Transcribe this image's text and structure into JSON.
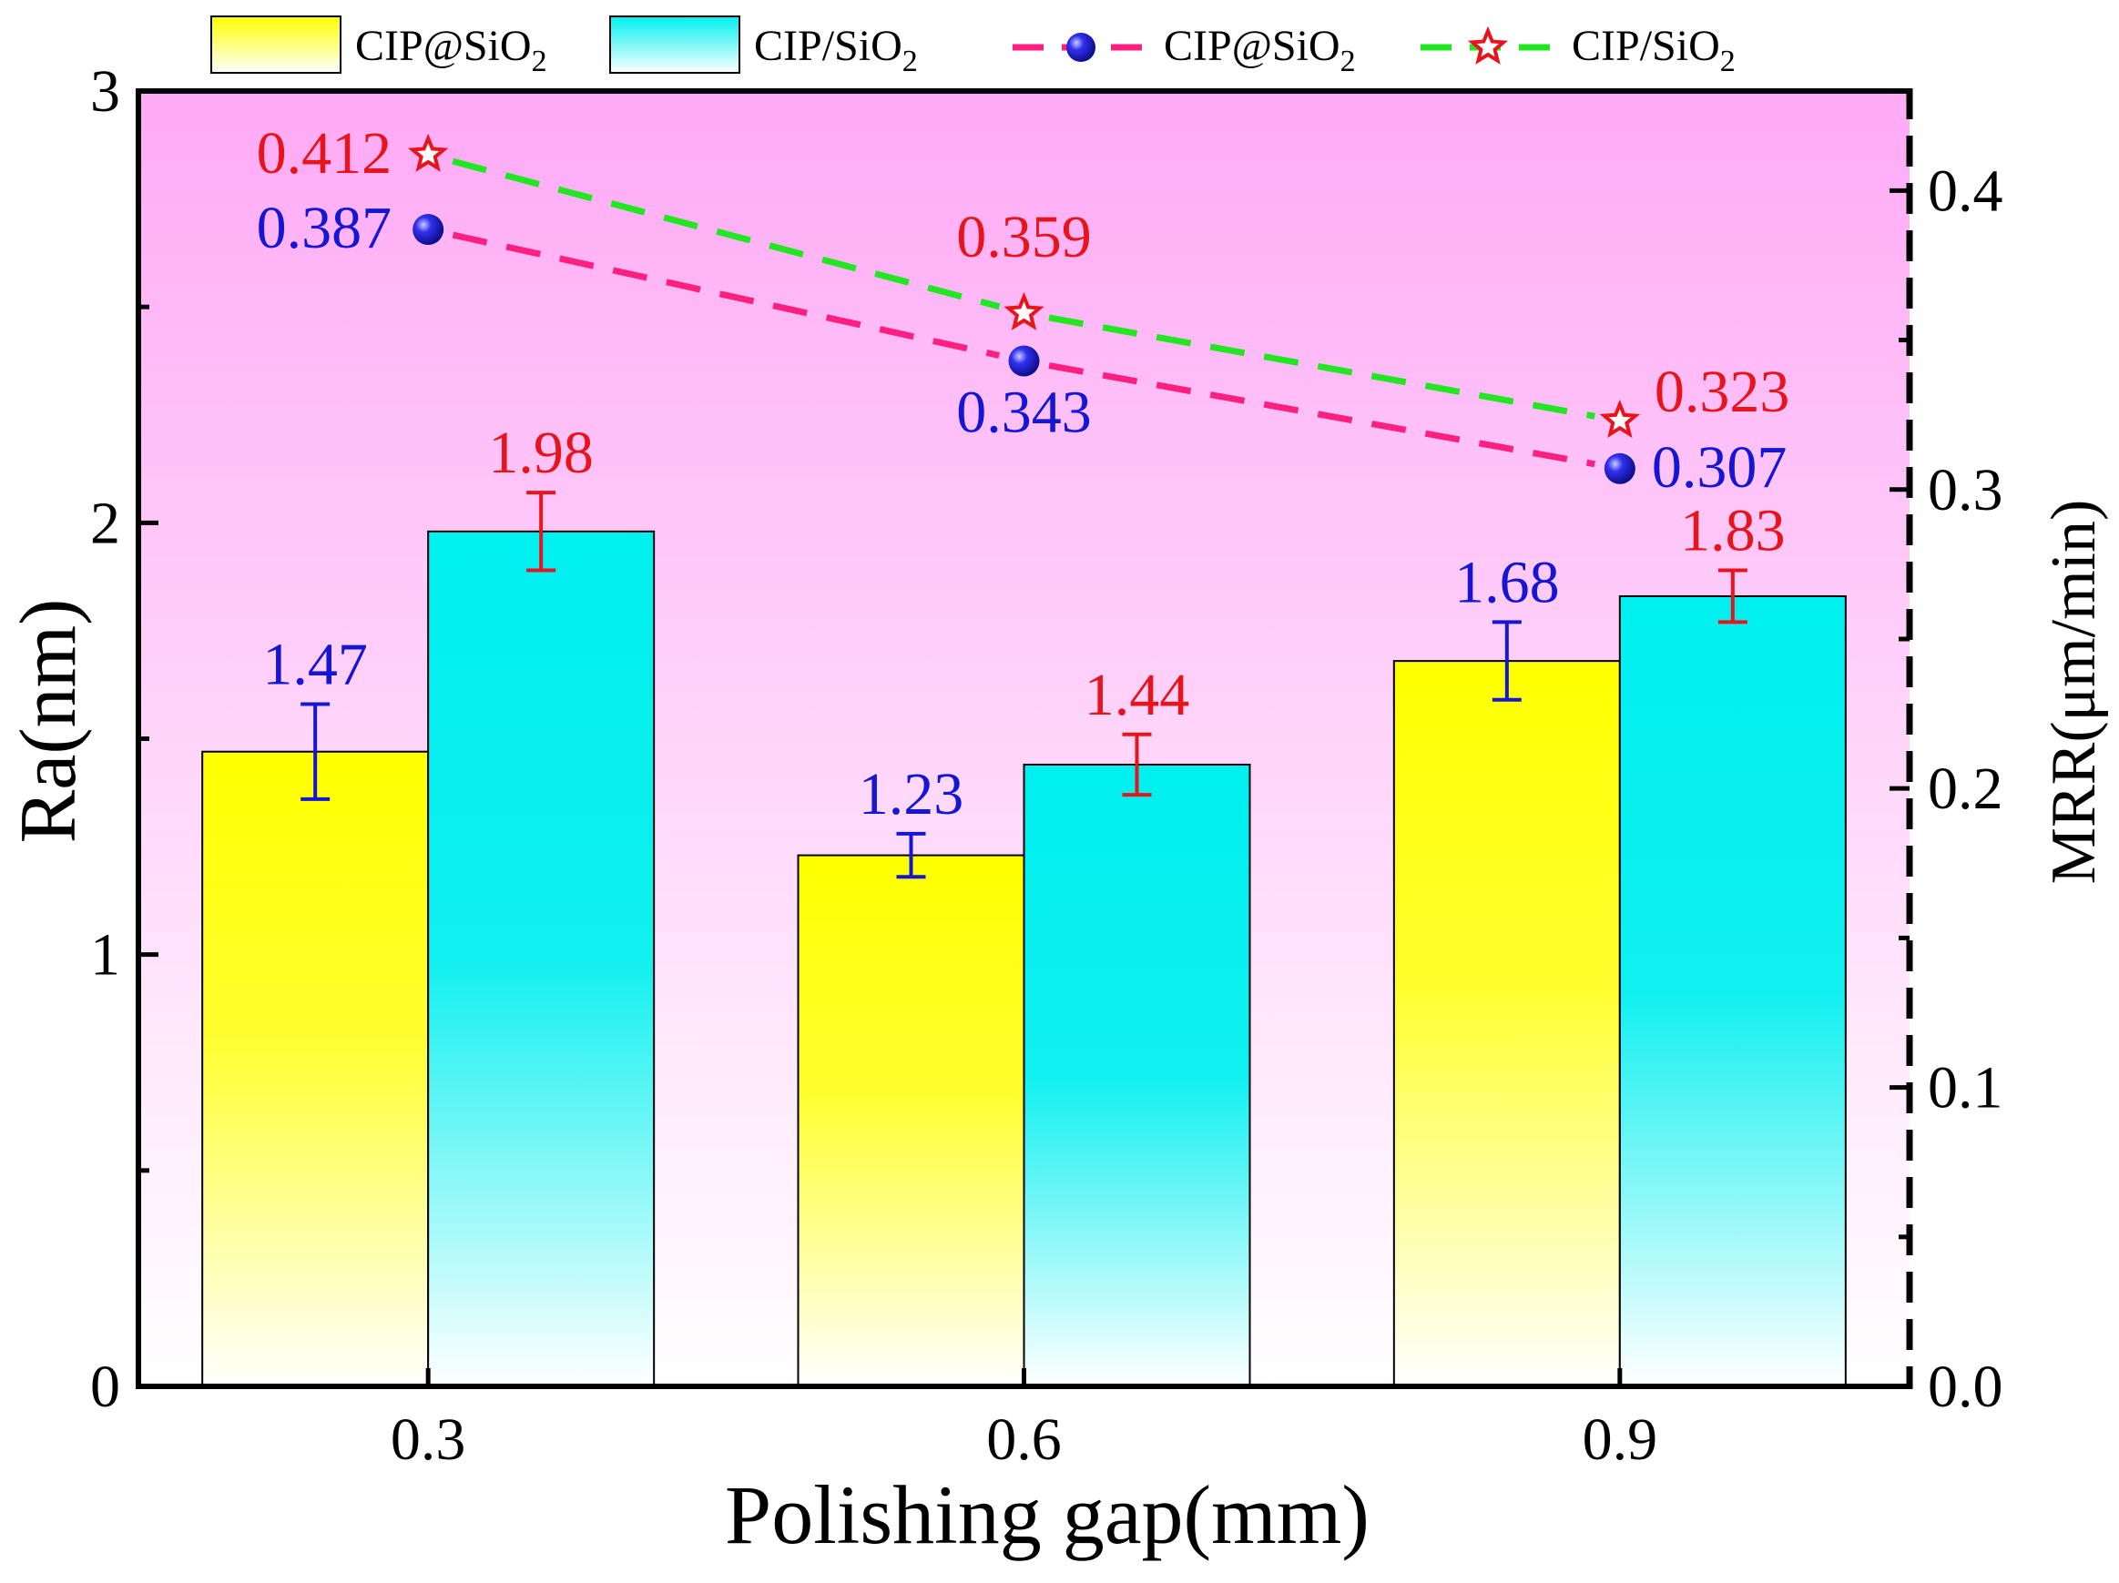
{
  "chart_data": {
    "type": "bar+line",
    "xlabel": "Polishing  gap(mm)",
    "ylabel_left": "Ra(nm)",
    "ylabel_right": "MRR(μm/min)",
    "categories": [
      "0.3",
      "0.6",
      "0.9"
    ],
    "ylim_left": [
      0,
      3
    ],
    "yticks_left": [
      "0",
      "1",
      "2",
      "3"
    ],
    "ylim_right": [
      0,
      0.4333
    ],
    "yticks_right": [
      "0.0",
      "0.1",
      "0.2",
      "0.3",
      "0.4"
    ],
    "bar_series": [
      {
        "name": "CIP@SiO",
        "sub": "2",
        "values": [
          1.47,
          1.23,
          1.68
        ],
        "errors": [
          0.11,
          0.05,
          0.09
        ],
        "labels": [
          "1.47",
          "1.23",
          "1.68"
        ],
        "label_color": "#1515d6",
        "top_color": "#ffff00",
        "bottom_color": "#ffffff"
      },
      {
        "name": "CIP/SiO",
        "sub": "2",
        "values": [
          1.98,
          1.44,
          1.83
        ],
        "errors": [
          0.09,
          0.07,
          0.06
        ],
        "labels": [
          "1.98",
          "1.44",
          "1.83"
        ],
        "label_color": "#e8141c",
        "top_color": "#00f0f0",
        "bottom_color": "#ffffff"
      }
    ],
    "line_series": [
      {
        "name": "CIP@SiO",
        "sub": "2",
        "values": [
          0.387,
          0.343,
          0.307
        ],
        "labels": [
          "0.387",
          "0.343",
          "0.307"
        ],
        "line_color": "#ff1f7f",
        "marker": "sphere",
        "marker_color": "#1a1ae6",
        "label_color": "#1515d6"
      },
      {
        "name": "CIP/SiO",
        "sub": "2",
        "values": [
          0.412,
          0.359,
          0.323
        ],
        "labels": [
          "0.412",
          "0.359",
          "0.323"
        ],
        "line_color": "#22e622",
        "marker": "star",
        "marker_color": "#e8141c",
        "label_color": "#e8141c"
      }
    ],
    "background_top": "#ffaaf5",
    "background_bottom": "#ffffff"
  }
}
